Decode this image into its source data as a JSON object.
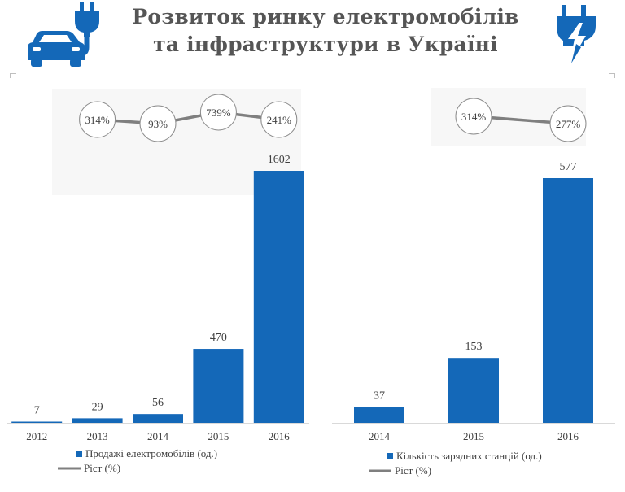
{
  "header": {
    "title_line1": "Розвиток ринку електромобілів",
    "title_line2": "та інфраструктури в Україні",
    "left_icon": "electric-car-icon",
    "right_icon": "lightning-plug-icon"
  },
  "colors": {
    "bar": "#1468b8",
    "growth_line": "#7f7f7f",
    "icon_blue": "#1468b8",
    "title": "#555555"
  },
  "chart_data": [
    {
      "type": "bar",
      "categories": [
        "2012",
        "2013",
        "2014",
        "2015",
        "2016"
      ],
      "series": [
        {
          "name": "Продажі електромобілів (од.)",
          "type": "bar",
          "values": [
            7,
            29,
            56,
            470,
            1602
          ]
        }
      ],
      "growth": {
        "name": "Ріст (%)",
        "type": "line",
        "categories": [
          "2013",
          "2014",
          "2015",
          "2016"
        ],
        "labels": [
          "314%",
          "93%",
          "739%",
          "241%"
        ]
      },
      "legend": [
        "Продажі електромобілів (од.)",
        "Ріст (%)"
      ],
      "legend_position": "bottom",
      "ylim": [
        0,
        1602
      ],
      "grid": false
    },
    {
      "type": "bar",
      "categories": [
        "2014",
        "2015",
        "2016"
      ],
      "series": [
        {
          "name": "Кількість зарядних станцій (од.)",
          "type": "bar",
          "values": [
            37,
            153,
            577
          ]
        }
      ],
      "growth": {
        "name": "Ріст (%)",
        "type": "line",
        "categories": [
          "2015",
          "2016"
        ],
        "labels": [
          "314%",
          "277%"
        ]
      },
      "legend": [
        "Кількість зарядних станцій (од.)",
        "Ріст (%)"
      ],
      "legend_position": "bottom",
      "ylim": [
        0,
        577
      ],
      "grid": false
    }
  ]
}
